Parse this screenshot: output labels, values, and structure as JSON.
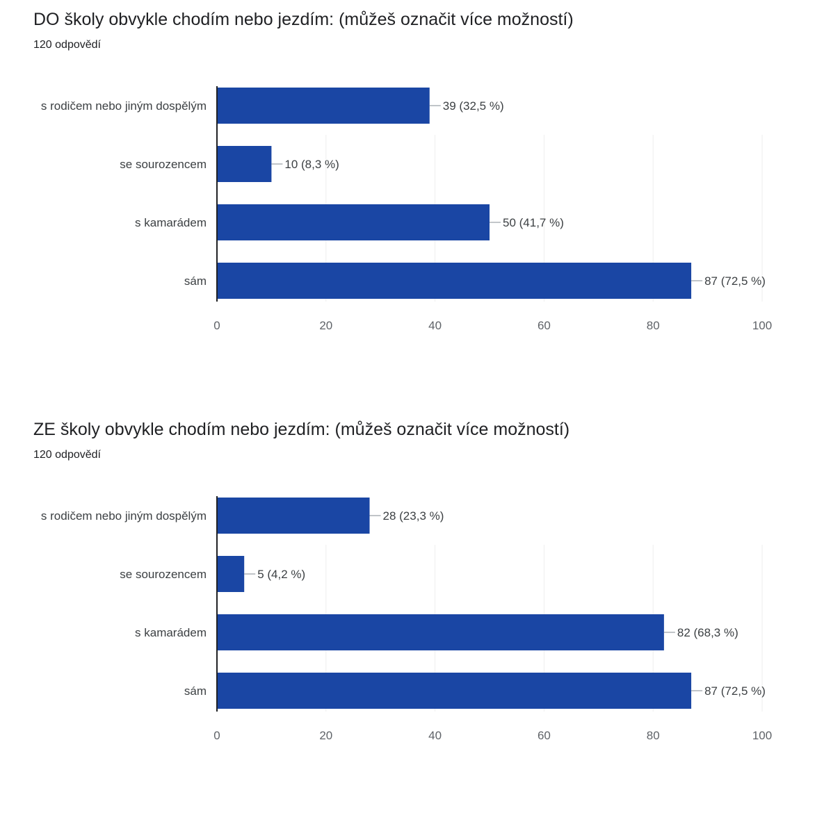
{
  "chart_data": [
    {
      "type": "bar",
      "orientation": "horizontal",
      "title": "DO školy obvykle chodím nebo jezdím:  (můžeš označit více možností)",
      "subtitle": "120 odpovědí",
      "categories": [
        "s rodičem nebo jiným dospělým",
        "se sourozencem",
        "s kamarádem",
        "sám"
      ],
      "values": [
        39,
        10,
        50,
        87
      ],
      "data_labels": [
        "39 (32,5 %)",
        "10 (8,3 %)",
        "50 (41,7 %)",
        "87 (72,5 %)"
      ],
      "xlim": [
        0,
        100
      ],
      "xticks": [
        "0",
        "20",
        "40",
        "60",
        "80",
        "100"
      ],
      "grid": true,
      "bar_color": "#1a46a4"
    },
    {
      "type": "bar",
      "orientation": "horizontal",
      "title": "ZE školy obvykle chodím nebo jezdím:  (můžeš označit více možností)",
      "subtitle": "120 odpovědí",
      "categories": [
        "s rodičem nebo jiným dospělým",
        "se sourozencem",
        "s kamarádem",
        "sám"
      ],
      "values": [
        28,
        5,
        82,
        87
      ],
      "data_labels": [
        "28 (23,3 %)",
        "5 (4,2 %)",
        "82 (68,3 %)",
        "87 (72,5 %)"
      ],
      "xlim": [
        0,
        100
      ],
      "xticks": [
        "0",
        "20",
        "40",
        "60",
        "80",
        "100"
      ],
      "grid": true,
      "bar_color": "#1a46a4"
    }
  ]
}
